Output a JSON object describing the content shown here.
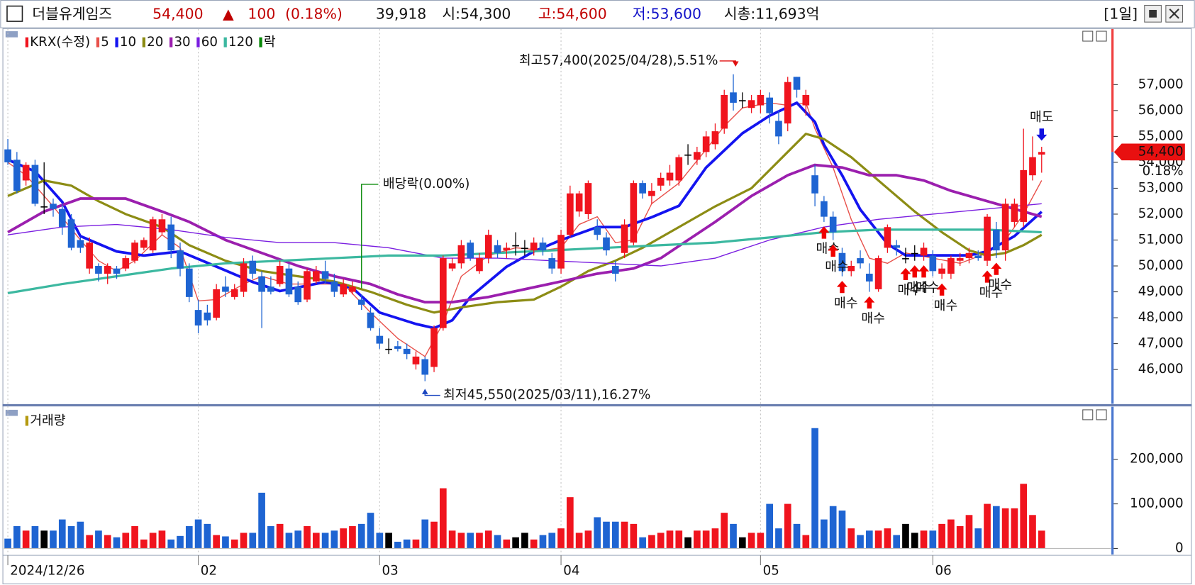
{
  "header": {
    "name": "더블유게임즈",
    "price": "54,400",
    "arrow": "▲",
    "change": "100",
    "change_pct": "(0.18%)",
    "volume": "39,918",
    "open": "시:54,300",
    "high": "고:54,600",
    "low": "저:53,600",
    "market_cap": "시총:11,693억",
    "period": "[1일]"
  },
  "chart_data": {
    "type": "candlestick",
    "categories": [
      "2024/12/26",
      null,
      null,
      null,
      null,
      null,
      null,
      null,
      null,
      null,
      null,
      null,
      null,
      null,
      null,
      null,
      null,
      null,
      null,
      null,
      null,
      "02",
      null,
      null,
      null,
      null,
      null,
      null,
      null,
      null,
      null,
      null,
      null,
      null,
      null,
      null,
      null,
      null,
      null,
      null,
      null,
      "03",
      null,
      null,
      null,
      null,
      null,
      null,
      null,
      null,
      null,
      null,
      null,
      null,
      null,
      null,
      null,
      null,
      null,
      null,
      null,
      "04",
      null,
      null,
      null,
      null,
      null,
      null,
      null,
      null,
      null,
      null,
      null,
      null,
      null,
      null,
      null,
      null,
      null,
      null,
      null,
      null,
      null,
      "05",
      null,
      null,
      null,
      null,
      null,
      null,
      null,
      null,
      null,
      null,
      null,
      null,
      null,
      null,
      null,
      null,
      null,
      null,
      "06",
      null,
      null,
      null,
      null,
      null,
      null,
      null,
      null,
      null,
      null,
      null,
      null
    ],
    "candles": {
      "name": "KRX(수정)",
      "up_color": "#f0141e",
      "down_color": "#1e64d2",
      "flat_color": "#000000",
      "open": [
        54500,
        54100,
        53300,
        53900,
        52300,
        52400,
        52200,
        51800,
        51000,
        49900,
        50000,
        49700,
        49900,
        49900,
        50200,
        50700,
        50600,
        51300,
        51600,
        50600,
        49900,
        48300,
        48200,
        48000,
        49200,
        48800,
        49000,
        50200,
        49600,
        49200,
        49300,
        49900,
        49200,
        48700,
        49400,
        49800,
        49400,
        48900,
        49000,
        48700,
        48200,
        47300,
        46800,
        46900,
        46800,
        46200,
        46400,
        46100,
        47600,
        49900,
        50100,
        50900,
        49800,
        50300,
        50800,
        50600,
        50800,
        50700,
        50600,
        50900,
        50300,
        49900,
        51200,
        52100,
        52000,
        51500,
        51100,
        50000,
        50500,
        50900,
        53200,
        52700,
        53100,
        53300,
        53300,
        54300,
        54100,
        54400,
        54700,
        55300,
        56700,
        56400,
        56100,
        56200,
        56500,
        55600,
        55500,
        57300,
        56200,
        53500,
        52500,
        51900,
        50500,
        49800,
        50300,
        49700,
        49100,
        50700,
        50800,
        50300,
        50500,
        50400,
        50400,
        49700,
        49700,
        50200,
        50300,
        50400,
        50200,
        51400,
        50600,
        51700,
        51700,
        53500,
        54300
      ],
      "high": [
        54900,
        54400,
        54000,
        54100,
        54000,
        52600,
        52400,
        52000,
        51100,
        51100,
        50100,
        50100,
        50000,
        50400,
        51000,
        51100,
        51900,
        52000,
        51900,
        50900,
        50100,
        48700,
        48500,
        49300,
        49600,
        49300,
        50300,
        50400,
        49800,
        49600,
        50200,
        50100,
        49400,
        49900,
        50000,
        50200,
        49700,
        49500,
        49400,
        48900,
        48400,
        47600,
        47200,
        47100,
        47000,
        46700,
        46500,
        47700,
        50400,
        50300,
        51000,
        51000,
        50500,
        51400,
        51000,
        50900,
        51300,
        51000,
        51100,
        51100,
        50500,
        51400,
        53100,
        52900,
        53300,
        51800,
        51300,
        50200,
        51800,
        53300,
        53300,
        53200,
        53600,
        53900,
        54300,
        54700,
        54600,
        55200,
        55500,
        56800,
        57400,
        56700,
        56600,
        56800,
        56700,
        56000,
        57300,
        57300,
        56800,
        53900,
        52700,
        52100,
        50700,
        50200,
        50600,
        50100,
        50400,
        51600,
        51000,
        50700,
        50800,
        50900,
        50600,
        50100,
        50400,
        50500,
        50700,
        50600,
        52000,
        51700,
        52600,
        52600,
        55300,
        55000,
        54600
      ],
      "low": [
        53900,
        52800,
        53100,
        52300,
        52000,
        51900,
        51200,
        50600,
        50500,
        49700,
        49400,
        49300,
        49500,
        49800,
        50100,
        50600,
        50500,
        51200,
        50300,
        49600,
        48600,
        47400,
        47700,
        47900,
        48800,
        48700,
        48800,
        49500,
        47600,
        48900,
        49200,
        48800,
        48500,
        48600,
        49300,
        49300,
        48800,
        48800,
        48900,
        48300,
        47500,
        46800,
        46600,
        46700,
        46400,
        46000,
        45550,
        45900,
        47500,
        49800,
        49900,
        50200,
        49700,
        50100,
        50300,
        50300,
        50400,
        50400,
        50400,
        50400,
        49700,
        49700,
        51100,
        51900,
        51800,
        51000,
        50400,
        49400,
        50300,
        50800,
        52600,
        52400,
        52900,
        53100,
        53100,
        53900,
        53900,
        54200,
        54500,
        55100,
        56000,
        56100,
        55900,
        55900,
        55500,
        54700,
        55200,
        56500,
        55800,
        52300,
        51700,
        51000,
        49600,
        49600,
        49900,
        49000,
        49000,
        50500,
        50400,
        50100,
        50200,
        50200,
        49600,
        49500,
        49500,
        50000,
        50100,
        50200,
        50000,
        50300,
        50200,
        51500,
        51500,
        53300,
        53600
      ],
      "close": [
        54000,
        52900,
        53900,
        52400,
        52300,
        52200,
        51500,
        50700,
        50700,
        50900,
        49700,
        50000,
        49700,
        50300,
        50900,
        51000,
        51800,
        51800,
        50600,
        49900,
        48800,
        47700,
        47900,
        49100,
        49000,
        49100,
        50100,
        49700,
        49000,
        49000,
        50000,
        48900,
        48600,
        49800,
        49800,
        49500,
        49000,
        49300,
        49200,
        48500,
        47600,
        47000,
        46800,
        46800,
        46600,
        46500,
        45800,
        47600,
        50300,
        50100,
        50800,
        50300,
        50300,
        51200,
        50500,
        50700,
        50800,
        50700,
        50900,
        50600,
        49900,
        51200,
        52800,
        52800,
        53200,
        51200,
        50600,
        49700,
        51600,
        53200,
        52800,
        52900,
        53400,
        53600,
        54200,
        54300,
        54400,
        55000,
        55200,
        56600,
        56300,
        56400,
        56400,
        56600,
        55900,
        55000,
        57100,
        56800,
        56600,
        52800,
        51900,
        51300,
        49800,
        50000,
        50100,
        49400,
        50300,
        51500,
        50700,
        50300,
        50500,
        50700,
        49800,
        49900,
        50300,
        50300,
        50500,
        50300,
        51900,
        50600,
        52400,
        52400,
        53700,
        54200,
        54400
      ]
    },
    "last_label": "54,400",
    "last_change_label": "0.18%",
    "ylim": [
      44680,
      59150
    ],
    "yticks": [
      {
        "value": 46000,
        "label": "46,000"
      },
      {
        "value": 47000,
        "label": "47,000"
      },
      {
        "value": 48000,
        "label": "48,000"
      },
      {
        "value": 49000,
        "label": "49,000"
      },
      {
        "value": 50000,
        "label": "50,000"
      },
      {
        "value": 51000,
        "label": "51,000"
      },
      {
        "value": 52000,
        "label": "52,000"
      },
      {
        "value": 53000,
        "label": "53,000"
      },
      {
        "value": 54000,
        "label": "54,000"
      },
      {
        "value": 55000,
        "label": "55,000"
      },
      {
        "value": 56000,
        "label": "56,000"
      },
      {
        "value": 57000,
        "label": "57,000"
      }
    ],
    "ma": [
      {
        "name": "5",
        "color": "#e8504a",
        "width": 1.3,
        "x": [
          0,
          2,
          5,
          8,
          10,
          12,
          14,
          17,
          19,
          21,
          23,
          26,
          28,
          31,
          34,
          37,
          40,
          43,
          46,
          48,
          50,
          53,
          56,
          59,
          61,
          63,
          65,
          67,
          69,
          71,
          74,
          77,
          79,
          81,
          84,
          86,
          88,
          89,
          91,
          93,
          95,
          97,
          99,
          102,
          105,
          108,
          110,
          112,
          114
        ],
        "values": [
          54000,
          53500,
          52300,
          51000,
          50200,
          49800,
          50200,
          51200,
          50700,
          48650,
          48700,
          49300,
          49600,
          49300,
          49300,
          49300,
          48200,
          47200,
          46500,
          47800,
          49600,
          50400,
          50700,
          50600,
          50700,
          51600,
          51900,
          50900,
          51000,
          52400,
          53200,
          54500,
          55400,
          56100,
          56300,
          56200,
          56300,
          55300,
          53800,
          51800,
          50300,
          50100,
          50500,
          50300,
          50100,
          50500,
          51000,
          52000,
          53300
        ]
      },
      {
        "name": "10",
        "color": "#1414f0",
        "width": 3.5,
        "x": [
          0,
          3,
          6,
          8,
          12,
          15,
          19,
          22,
          27,
          30,
          35,
          38,
          41,
          45,
          47,
          49,
          51,
          55,
          58,
          61,
          65,
          68,
          71,
          74,
          77,
          81,
          84,
          87,
          89,
          90,
          92,
          94,
          97,
          99,
          103,
          106,
          108,
          111,
          114
        ],
        "values": [
          54100,
          53650,
          52470,
          51150,
          50560,
          50400,
          50560,
          50120,
          49380,
          49030,
          49380,
          49150,
          48200,
          47760,
          47600,
          47900,
          48800,
          49970,
          50560,
          51000,
          51500,
          51500,
          51880,
          52320,
          53800,
          55120,
          55800,
          56300,
          55560,
          54680,
          53500,
          52180,
          50850,
          50410,
          50410,
          50410,
          50560,
          51150,
          52090
        ]
      },
      {
        "name": "20",
        "color": "#8c8c14",
        "width": 3,
        "x": [
          0,
          4,
          7,
          10,
          13,
          17,
          20,
          24,
          28,
          32,
          36,
          40,
          44,
          47,
          50,
          54,
          58,
          61,
          64,
          67,
          70,
          74,
          78,
          82,
          86,
          88,
          90,
          93,
          97,
          100,
          103,
          106,
          108,
          110,
          112,
          114
        ],
        "values": [
          52700,
          53300,
          53100,
          52500,
          52000,
          51500,
          50800,
          50200,
          49800,
          49600,
          49400,
          49000,
          48500,
          48200,
          48400,
          48600,
          48700,
          49200,
          49800,
          50200,
          50700,
          51500,
          52300,
          53000,
          54400,
          55100,
          54900,
          54200,
          53000,
          52100,
          51300,
          50600,
          50400,
          50500,
          50800,
          51200
        ]
      },
      {
        "name": "30",
        "color": "#9b1fae",
        "width": 3.5,
        "x": [
          0,
          4,
          8,
          13,
          17,
          20,
          24,
          28,
          32,
          36,
          40,
          43,
          46,
          49,
          53,
          57,
          61,
          65,
          69,
          72,
          75,
          78,
          82,
          86,
          89,
          92,
          95,
          98,
          101,
          104,
          107,
          110,
          114
        ],
        "values": [
          51300,
          52100,
          52600,
          52600,
          52100,
          51700,
          51000,
          50500,
          50000,
          49600,
          49300,
          48900,
          48600,
          48600,
          48800,
          49100,
          49400,
          49700,
          49900,
          50300,
          51000,
          51700,
          52700,
          53500,
          53900,
          53800,
          53500,
          53500,
          53300,
          52900,
          52600,
          52300,
          51900
        ]
      },
      {
        "name": "60",
        "color": "#7a1ee0",
        "width": 1.3,
        "x": [
          0,
          6,
          12,
          18,
          24,
          30,
          36,
          42,
          48,
          54,
          60,
          66,
          72,
          78,
          84,
          90,
          96,
          102,
          108,
          114
        ],
        "values": [
          51200,
          51500,
          51600,
          51400,
          51100,
          50900,
          50900,
          50700,
          50300,
          50300,
          50200,
          50100,
          50000,
          50300,
          51000,
          51500,
          51800,
          52000,
          52200,
          52400
        ]
      },
      {
        "name": "120",
        "color": "#3cb8a0",
        "width": 3,
        "x": [
          0,
          6,
          12,
          18,
          24,
          30,
          36,
          42,
          48,
          54,
          60,
          66,
          72,
          78,
          84,
          90,
          96,
          102,
          108,
          114
        ],
        "values": [
          48950,
          49300,
          49600,
          49900,
          50100,
          50200,
          50300,
          50400,
          50400,
          50500,
          50600,
          50700,
          50800,
          50900,
          51100,
          51300,
          51400,
          51400,
          51400,
          51300
        ]
      }
    ],
    "dividend": {
      "name": "락",
      "color": "#0a8a0a",
      "text": "배당락(0.00%)",
      "index": 39
    },
    "high_note": {
      "text": "최고57,400(2025/04/28),5.51%",
      "index": 80,
      "color": "#e01010"
    },
    "low_note": {
      "text": "최저45,550(2025/03/11),16.27%",
      "index": 46,
      "color": "#1a46c0"
    },
    "buy_signals": [
      {
        "index": 90,
        "label": "매수"
      },
      {
        "index": 91,
        "label": "매수"
      },
      {
        "index": 92,
        "label": "매수"
      },
      {
        "index": 95,
        "label": "매수"
      },
      {
        "index": 99,
        "label": "매수"
      },
      {
        "index": 100,
        "label": "매수"
      },
      {
        "index": 101,
        "label": "매수"
      },
      {
        "index": 103,
        "label": "매수"
      },
      {
        "index": 108,
        "label": "매수"
      },
      {
        "index": 109,
        "label": "매수"
      }
    ],
    "sell_signals": [
      {
        "index": 114,
        "label": "매도"
      }
    ],
    "volume": {
      "name": "거래량",
      "color": "#b49a10",
      "values": [
        22000,
        50000,
        40000,
        50000,
        40000,
        40000,
        65000,
        50000,
        60000,
        30000,
        40000,
        30000,
        25000,
        35000,
        50000,
        20000,
        35000,
        40000,
        20000,
        28000,
        50000,
        65000,
        55000,
        30000,
        27000,
        20000,
        35000,
        35000,
        125000,
        50000,
        55000,
        35000,
        40000,
        50000,
        35000,
        35000,
        40000,
        45000,
        50000,
        55000,
        80000,
        35000,
        35000,
        15000,
        20000,
        20000,
        65000,
        60000,
        135000,
        40000,
        35000,
        35000,
        35000,
        40000,
        30000,
        20000,
        25000,
        35000,
        20000,
        30000,
        35000,
        45000,
        115000,
        35000,
        40000,
        70000,
        60000,
        60000,
        60000,
        55000,
        25000,
        30000,
        35000,
        40000,
        40000,
        25000,
        40000,
        40000,
        45000,
        80000,
        55000,
        25000,
        35000,
        35000,
        100000,
        45000,
        100000,
        55000,
        30000,
        270000,
        65000,
        95000,
        85000,
        45000,
        30000,
        40000,
        40000,
        45000,
        30000,
        55000,
        35000,
        40000,
        40000,
        55000,
        65000,
        50000,
        75000,
        45000,
        100000,
        95000,
        90000,
        90000,
        145000,
        75000,
        39918
      ],
      "ylim": [
        -13700,
        312800
      ],
      "yticks": [
        0,
        {
          "value": 100000,
          "label": "100,000"
        },
        {
          "value": 200000,
          "label": "200,000"
        }
      ]
    }
  }
}
